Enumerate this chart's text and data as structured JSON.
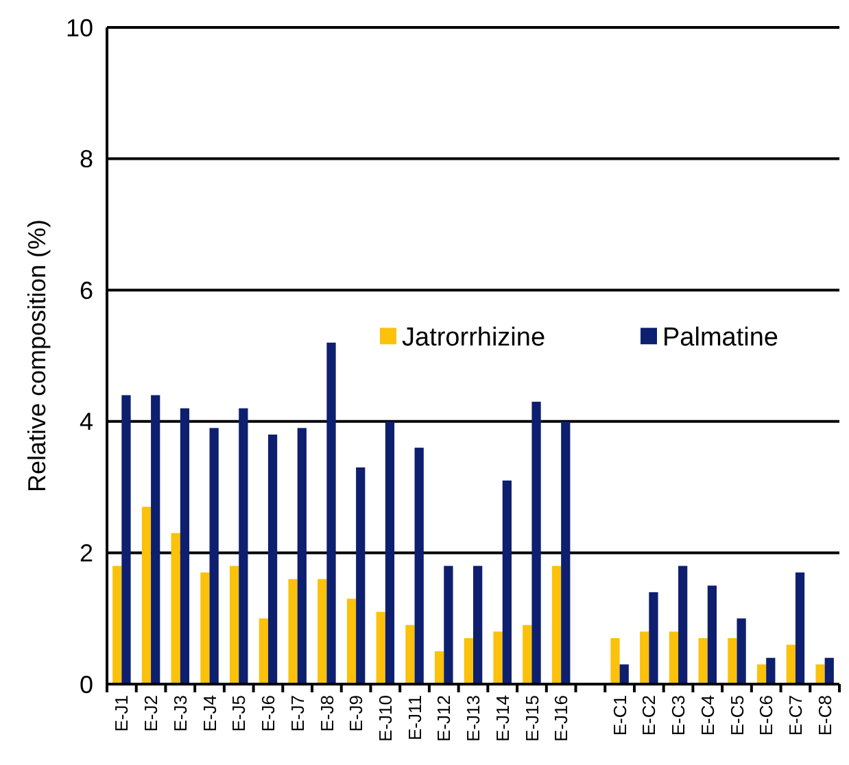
{
  "chart_data": {
    "type": "bar",
    "ylabel": "Relative composition (%)",
    "categories": [
      "E-J1",
      "E-J2",
      "E-J3",
      "E-J4",
      "E-J5",
      "E-J6",
      "E-J7",
      "E-J8",
      "E-J9",
      "E-J10",
      "E-J11",
      "E-J12",
      "E-J13",
      "E-J14",
      "E-J15",
      "E-J16",
      null,
      "E-C1",
      "E-C2",
      "E-C3",
      "E-C4",
      "E-C5",
      "E-C6",
      "E-C7",
      "E-C8"
    ],
    "series": [
      {
        "name": "Jatrorrhizine",
        "color": "#fbc10b",
        "values": [
          1.8,
          2.7,
          2.3,
          1.7,
          1.8,
          1.0,
          1.6,
          1.6,
          1.3,
          1.1,
          0.9,
          0.5,
          0.7,
          0.8,
          0.9,
          1.8,
          null,
          0.7,
          0.8,
          0.8,
          0.7,
          0.7,
          0.3,
          0.6,
          0.3
        ]
      },
      {
        "name": "Palmatine",
        "color": "#0d1f6e",
        "values": [
          4.4,
          4.4,
          4.2,
          3.9,
          4.2,
          3.8,
          3.9,
          5.2,
          3.3,
          4.0,
          3.6,
          1.8,
          1.8,
          3.1,
          4.3,
          4.0,
          null,
          0.3,
          1.4,
          1.8,
          1.5,
          1.0,
          0.4,
          1.7,
          0.4
        ]
      }
    ],
    "ylim": [
      0,
      10
    ],
    "yticks": [
      0,
      2,
      4,
      6,
      8,
      10
    ],
    "grid": "y",
    "legend": "right"
  }
}
